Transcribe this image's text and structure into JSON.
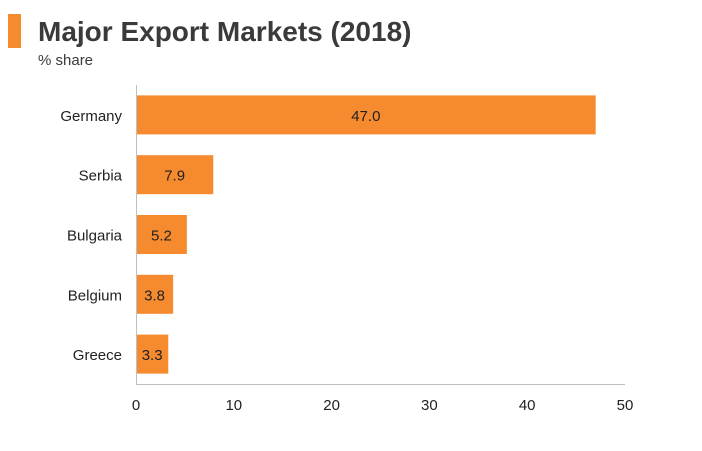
{
  "header": {
    "title": "Major Export Markets (2018)",
    "subtitle": "% share"
  },
  "colors": {
    "accent": "#F58A2F",
    "bar": "#F58A2F",
    "axis": "#bfbfbf",
    "text": "#222222"
  },
  "chart_data": {
    "type": "bar",
    "orientation": "horizontal",
    "title": "Major Export Markets (2018)",
    "subtitle": "% share",
    "categories": [
      "Germany",
      "Serbia",
      "Bulgaria",
      "Belgium",
      "Greece"
    ],
    "values": [
      47.0,
      7.9,
      5.2,
      3.8,
      3.3
    ],
    "value_labels": [
      "47.0",
      "7.9",
      "5.2",
      "3.8",
      "3.3"
    ],
    "xlim": [
      0,
      50
    ],
    "xticks": [
      0,
      10,
      20,
      30,
      40,
      50
    ],
    "xlabel": "",
    "ylabel": "",
    "grid": false,
    "legend": "none"
  }
}
